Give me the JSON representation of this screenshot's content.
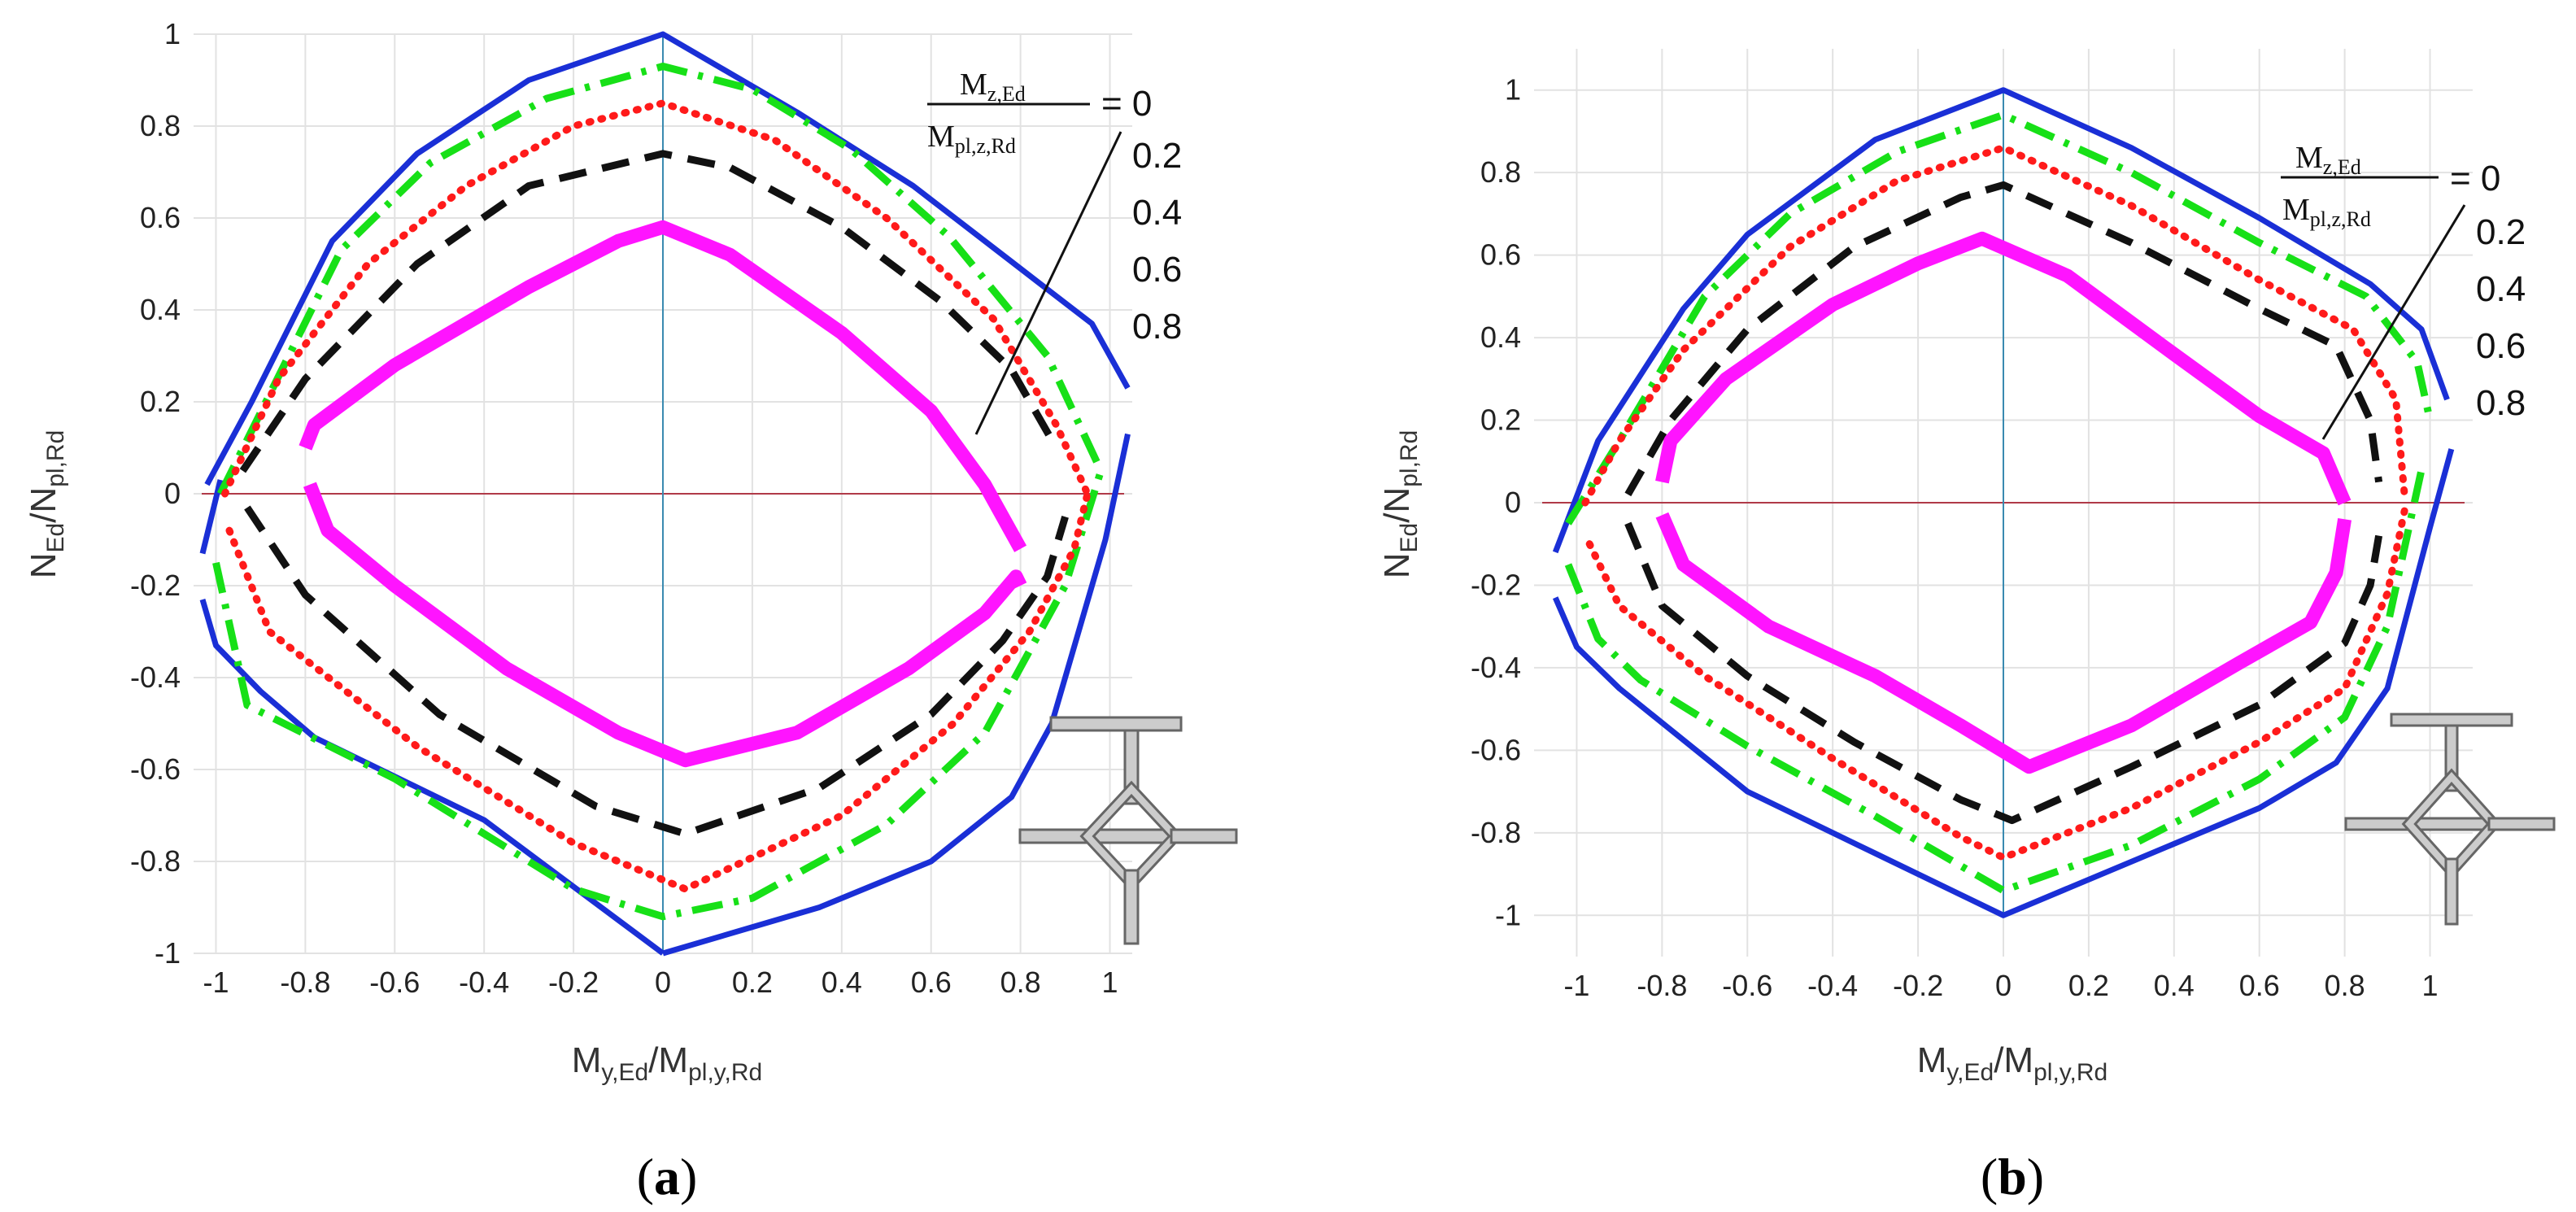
{
  "colors": {
    "blue": "#1a2fd6",
    "green": "#17e017",
    "red": "#ff1a1a",
    "black": "#111111",
    "magenta": "#ff14ff",
    "axis_h": "#b03a48",
    "axis_v": "#3a8ab0"
  },
  "chart_data": [
    {
      "type": "line",
      "panel_tag": {
        "open": "(",
        "letter": "a",
        "close": ")"
      },
      "xlabel": {
        "base": "M",
        "sub1": "y,Ed",
        "mid": "/M",
        "sub2": "pl,y,Rd"
      },
      "ylabel": {
        "base": "N",
        "sub1": "Ed",
        "mid": "/N",
        "sub2": "pl,Rd"
      },
      "xlim": [
        -1.05,
        1.05
      ],
      "ylim": [
        -1,
        1
      ],
      "x_ticks": [
        "-1",
        "-0.8",
        "-0.6",
        "-0.4",
        "-0.2",
        "0",
        "0.2",
        "0.4",
        "0.6",
        "0.8",
        "1"
      ],
      "y_ticks": [
        "-1",
        "-0.8",
        "-0.6",
        "-0.4",
        "-0.2",
        "0",
        "0.2",
        "0.4",
        "0.6",
        "0.8",
        "1"
      ],
      "legend": {
        "numerator": {
          "base": "M",
          "sub": "z,Ed"
        },
        "denominator": {
          "base": "M",
          "sub": "pl,z,Rd"
        },
        "eq": "= 0",
        "values": [
          "0.2",
          "0.4",
          "0.6",
          "0.8"
        ]
      },
      "series": [
        {
          "name": "0",
          "style": "solid",
          "color": "blue",
          "upper": [
            [
              -1.02,
              0.02
            ],
            [
              -0.92,
              0.2
            ],
            [
              -0.74,
              0.55
            ],
            [
              -0.55,
              0.74
            ],
            [
              -0.3,
              0.9
            ],
            [
              0,
              1
            ],
            [
              0.3,
              0.83
            ],
            [
              0.56,
              0.67
            ],
            [
              0.76,
              0.52
            ],
            [
              0.96,
              0.37
            ],
            [
              1.04,
              0.23
            ]
          ],
          "upper_right": [
            [
              1.04,
              0.13
            ],
            [
              0.99,
              -0.1
            ],
            [
              0.87,
              -0.5
            ],
            [
              0.78,
              -0.66
            ],
            [
              0.6,
              -0.8
            ],
            [
              0.35,
              -0.9
            ],
            [
              0,
              -1
            ]
          ],
          "lower": [
            [
              -1.03,
              -0.13
            ],
            [
              -0.99,
              0.03
            ]
          ],
          "lower_left": [
            [
              -1.03,
              -0.23
            ],
            [
              -1,
              -0.33
            ],
            [
              -0.9,
              -0.43
            ],
            [
              -0.78,
              -0.53
            ],
            [
              -0.4,
              -0.71
            ],
            [
              0,
              -1
            ]
          ]
        },
        {
          "name": "0.2",
          "style": "dashdot",
          "color": "green",
          "upper": [
            [
              -0.99,
              0
            ],
            [
              -0.72,
              0.53
            ],
            [
              -0.52,
              0.72
            ],
            [
              -0.26,
              0.86
            ],
            [
              0,
              0.93
            ],
            [
              0.2,
              0.88
            ],
            [
              0.42,
              0.75
            ],
            [
              0.64,
              0.56
            ],
            [
              0.86,
              0.3
            ],
            [
              0.98,
              0.05
            ]
          ],
          "lower": [
            [
              -1,
              -0.15
            ],
            [
              -0.93,
              -0.46
            ],
            [
              -0.6,
              -0.62
            ],
            [
              -0.2,
              -0.86
            ],
            [
              0,
              -0.92
            ],
            [
              0.2,
              -0.88
            ],
            [
              0.5,
              -0.72
            ],
            [
              0.72,
              -0.52
            ],
            [
              0.9,
              -0.2
            ],
            [
              0.98,
              0.05
            ]
          ]
        },
        {
          "name": "0.4",
          "style": "dotted",
          "color": "red",
          "upper": [
            [
              -0.98,
              0
            ],
            [
              -0.86,
              0.25
            ],
            [
              -0.66,
              0.5
            ],
            [
              -0.44,
              0.67
            ],
            [
              -0.2,
              0.8
            ],
            [
              0,
              0.85
            ],
            [
              0.25,
              0.77
            ],
            [
              0.5,
              0.6
            ],
            [
              0.74,
              0.38
            ],
            [
              0.88,
              0.15
            ],
            [
              0.95,
              0
            ]
          ],
          "lower": [
            [
              -0.97,
              -0.08
            ],
            [
              -0.88,
              -0.3
            ],
            [
              -0.55,
              -0.55
            ],
            [
              -0.2,
              -0.76
            ],
            [
              0.05,
              -0.86
            ],
            [
              0.4,
              -0.7
            ],
            [
              0.65,
              -0.5
            ],
            [
              0.82,
              -0.3
            ],
            [
              0.92,
              -0.12
            ],
            [
              0.95,
              0
            ]
          ]
        },
        {
          "name": "0.6",
          "style": "dashed",
          "color": "black",
          "upper": [
            [
              -0.94,
              0.05
            ],
            [
              -0.8,
              0.25
            ],
            [
              -0.55,
              0.5
            ],
            [
              -0.3,
              0.67
            ],
            [
              0,
              0.74
            ],
            [
              0.15,
              0.71
            ],
            [
              0.4,
              0.58
            ],
            [
              0.62,
              0.42
            ],
            [
              0.78,
              0.27
            ],
            [
              0.88,
              0.1
            ]
          ],
          "lower": [
            [
              -0.93,
              -0.03
            ],
            [
              -0.8,
              -0.22
            ],
            [
              -0.5,
              -0.48
            ],
            [
              -0.15,
              -0.68
            ],
            [
              0.05,
              -0.74
            ],
            [
              0.35,
              -0.64
            ],
            [
              0.6,
              -0.48
            ],
            [
              0.76,
              -0.32
            ],
            [
              0.86,
              -0.18
            ],
            [
              0.9,
              -0.05
            ]
          ]
        },
        {
          "name": "0.8",
          "style": "solid-thick",
          "color": "magenta",
          "upper": [
            [
              -0.8,
              0.1
            ],
            [
              -0.78,
              0.15
            ],
            [
              -0.6,
              0.28
            ],
            [
              -0.3,
              0.45
            ],
            [
              -0.1,
              0.55
            ],
            [
              0,
              0.58
            ],
            [
              0.15,
              0.52
            ],
            [
              0.4,
              0.35
            ],
            [
              0.6,
              0.18
            ],
            [
              0.72,
              0.02
            ],
            [
              0.8,
              -0.12
            ]
          ],
          "lower": [
            [
              -0.79,
              0.02
            ],
            [
              -0.75,
              -0.08
            ],
            [
              -0.6,
              -0.2
            ],
            [
              -0.35,
              -0.38
            ],
            [
              -0.1,
              -0.52
            ],
            [
              0.05,
              -0.58
            ],
            [
              0.3,
              -0.52
            ],
            [
              0.55,
              -0.38
            ],
            [
              0.72,
              -0.26
            ],
            [
              0.79,
              -0.18
            ],
            [
              0.8,
              -0.2
            ]
          ]
        }
      ]
    },
    {
      "type": "line",
      "panel_tag": {
        "open": "(",
        "letter": "b",
        "close": ")"
      },
      "xlabel": {
        "base": "M",
        "sub1": "y,Ed",
        "mid": "/M",
        "sub2": "pl,y,Rd"
      },
      "ylabel": {
        "base": "N",
        "sub1": "Ed",
        "mid": "/N",
        "sub2": "pl,Rd"
      },
      "xlim": [
        -1.1,
        1.1
      ],
      "ylim": [
        -1.1,
        1.1
      ],
      "x_ticks": [
        "-1",
        "-0.8",
        "-0.6",
        "-0.4",
        "-0.2",
        "0",
        "0.2",
        "0.4",
        "0.6",
        "0.8",
        "1"
      ],
      "y_ticks": [
        "-1",
        "-0.8",
        "-0.6",
        "-0.4",
        "-0.2",
        "0",
        "0.2",
        "0.4",
        "0.6",
        "0.8",
        "1"
      ],
      "legend": {
        "numerator": {
          "base": "M",
          "sub": "z,Ed"
        },
        "denominator": {
          "base": "M",
          "sub": "pl,z,Rd"
        },
        "eq": "= 0",
        "values": [
          "0.2",
          "0.4",
          "0.6",
          "0.8"
        ]
      },
      "series": [
        {
          "name": "0",
          "style": "solid",
          "color": "blue",
          "upper": [
            [
              -1.05,
              -0.12
            ],
            [
              -0.95,
              0.15
            ],
            [
              -0.75,
              0.47
            ],
            [
              -0.6,
              0.65
            ],
            [
              -0.3,
              0.88
            ],
            [
              0,
              1
            ],
            [
              0.3,
              0.86
            ],
            [
              0.6,
              0.69
            ],
            [
              0.86,
              0.53
            ],
            [
              0.98,
              0.42
            ],
            [
              1.04,
              0.25
            ]
          ],
          "lower": [
            [
              1.05,
              0.13
            ],
            [
              1,
              -0.06
            ],
            [
              0.9,
              -0.45
            ],
            [
              0.78,
              -0.63
            ],
            [
              0.6,
              -0.74
            ],
            [
              0.3,
              -0.87
            ],
            [
              0,
              -1
            ],
            [
              -0.3,
              -0.85
            ],
            [
              -0.6,
              -0.7
            ],
            [
              -0.9,
              -0.45
            ],
            [
              -1,
              -0.35
            ],
            [
              -1.05,
              -0.23
            ]
          ]
        },
        {
          "name": "0.2",
          "style": "dashdot",
          "color": "green",
          "upper": [
            [
              -1.02,
              -0.05
            ],
            [
              -0.9,
              0.15
            ],
            [
              -0.7,
              0.5
            ],
            [
              -0.5,
              0.7
            ],
            [
              -0.25,
              0.85
            ],
            [
              0,
              0.94
            ],
            [
              0.3,
              0.8
            ],
            [
              0.6,
              0.63
            ],
            [
              0.85,
              0.5
            ],
            [
              0.97,
              0.34
            ],
            [
              1,
              0.2
            ]
          ],
          "lower": [
            [
              -1.02,
              -0.15
            ],
            [
              -0.95,
              -0.33
            ],
            [
              -0.85,
              -0.43
            ],
            [
              -0.6,
              -0.59
            ],
            [
              -0.3,
              -0.76
            ],
            [
              0,
              -0.94
            ],
            [
              0.3,
              -0.83
            ],
            [
              0.6,
              -0.67
            ],
            [
              0.8,
              -0.52
            ],
            [
              0.9,
              -0.3
            ],
            [
              0.98,
              0.08
            ]
          ]
        },
        {
          "name": "0.4",
          "style": "dotted",
          "color": "red",
          "upper": [
            [
              -0.98,
              0
            ],
            [
              -0.9,
              0.15
            ],
            [
              -0.75,
              0.37
            ],
            [
              -0.5,
              0.62
            ],
            [
              -0.25,
              0.78
            ],
            [
              0,
              0.86
            ],
            [
              0.3,
              0.72
            ],
            [
              0.6,
              0.54
            ],
            [
              0.82,
              0.42
            ],
            [
              0.92,
              0.25
            ],
            [
              0.94,
              0.02
            ]
          ],
          "lower": [
            [
              -0.97,
              -0.1
            ],
            [
              -0.9,
              -0.25
            ],
            [
              -0.7,
              -0.42
            ],
            [
              -0.4,
              -0.62
            ],
            [
              -0.1,
              -0.81
            ],
            [
              0,
              -0.86
            ],
            [
              0.3,
              -0.74
            ],
            [
              0.6,
              -0.58
            ],
            [
              0.8,
              -0.45
            ],
            [
              0.9,
              -0.22
            ],
            [
              0.94,
              -0.02
            ]
          ]
        },
        {
          "name": "0.6",
          "style": "dashed",
          "color": "black",
          "upper": [
            [
              -0.88,
              0.02
            ],
            [
              -0.78,
              0.2
            ],
            [
              -0.6,
              0.42
            ],
            [
              -0.35,
              0.62
            ],
            [
              -0.1,
              0.74
            ],
            [
              0,
              0.77
            ],
            [
              0.3,
              0.63
            ],
            [
              0.6,
              0.47
            ],
            [
              0.78,
              0.38
            ],
            [
              0.86,
              0.2
            ],
            [
              0.88,
              0.05
            ]
          ],
          "lower": [
            [
              -0.88,
              -0.05
            ],
            [
              -0.8,
              -0.25
            ],
            [
              -0.6,
              -0.42
            ],
            [
              -0.35,
              -0.58
            ],
            [
              -0.1,
              -0.72
            ],
            [
              0.02,
              -0.77
            ],
            [
              0.3,
              -0.64
            ],
            [
              0.6,
              -0.49
            ],
            [
              0.8,
              -0.34
            ],
            [
              0.86,
              -0.2
            ],
            [
              0.88,
              -0.08
            ]
          ]
        },
        {
          "name": "0.8",
          "style": "solid-thick",
          "color": "magenta",
          "upper": [
            [
              -0.8,
              0.05
            ],
            [
              -0.78,
              0.15
            ],
            [
              -0.65,
              0.3
            ],
            [
              -0.4,
              0.48
            ],
            [
              -0.2,
              0.58
            ],
            [
              -0.05,
              0.64
            ],
            [
              0.15,
              0.55
            ],
            [
              0.4,
              0.36
            ],
            [
              0.6,
              0.21
            ],
            [
              0.75,
              0.12
            ],
            [
              0.8,
              0
            ]
          ],
          "lower": [
            [
              -0.8,
              -0.03
            ],
            [
              -0.75,
              -0.15
            ],
            [
              -0.55,
              -0.3
            ],
            [
              -0.3,
              -0.42
            ],
            [
              -0.1,
              -0.54
            ],
            [
              0.06,
              -0.64
            ],
            [
              0.3,
              -0.54
            ],
            [
              0.55,
              -0.39
            ],
            [
              0.72,
              -0.29
            ],
            [
              0.78,
              -0.17
            ],
            [
              0.8,
              -0.04
            ]
          ]
        }
      ]
    }
  ]
}
